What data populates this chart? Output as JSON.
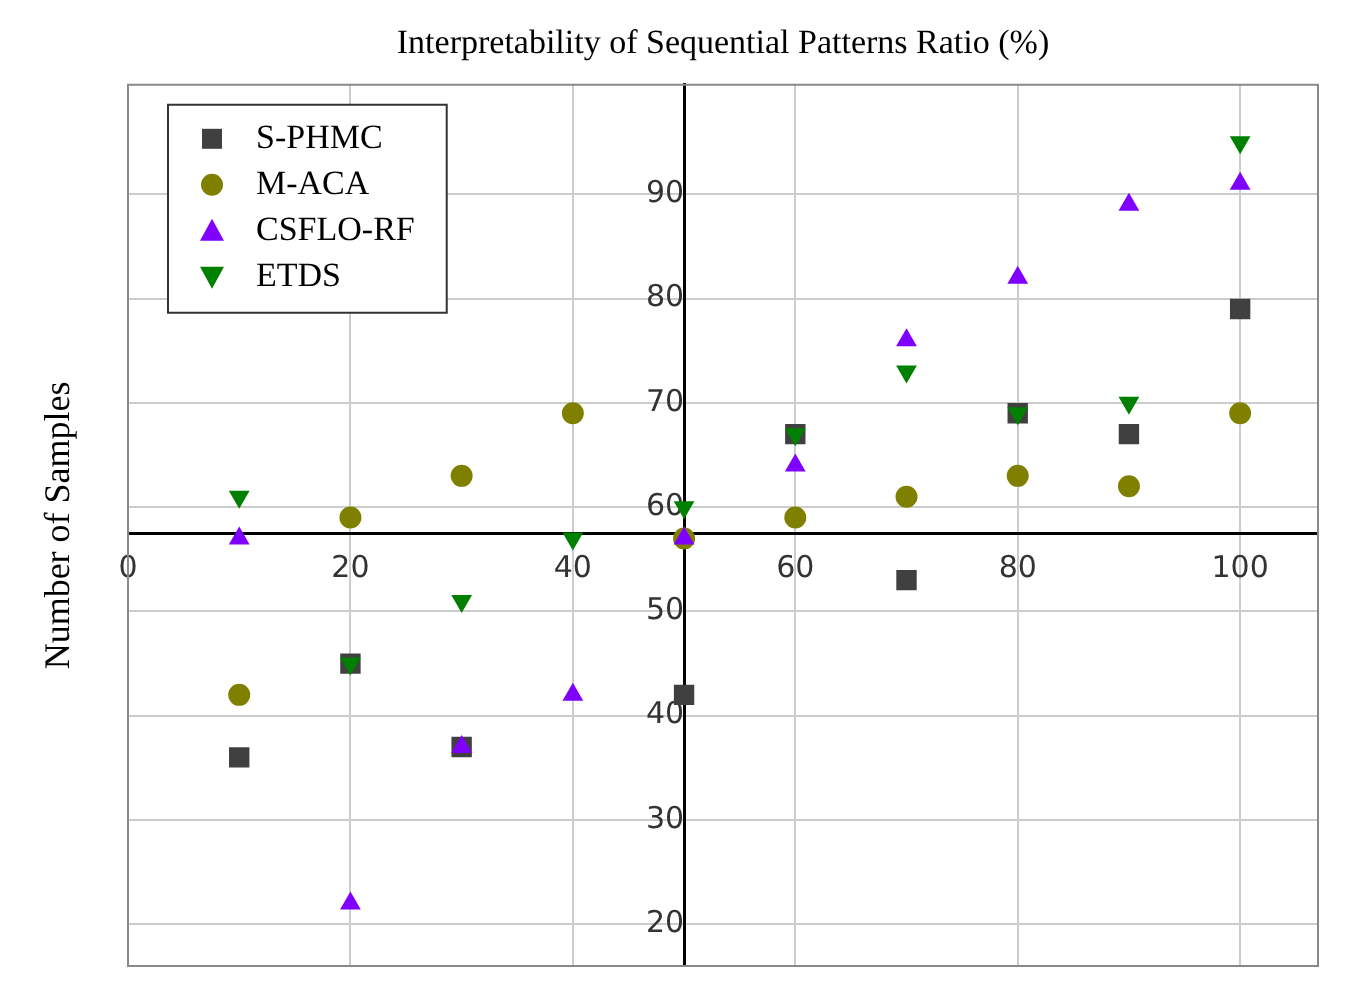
{
  "chart_data": {
    "type": "scatter",
    "xlabel": "Interpretability of Sequential Patterns Ratio (%)",
    "ylabel": "Number of Samples",
    "x": [
      10,
      20,
      30,
      40,
      50,
      60,
      70,
      80,
      90,
      100
    ],
    "series": [
      {
        "name": "S-PHMC",
        "color": "#404040",
        "marker": "square",
        "values": [
          36,
          45,
          37,
          null,
          42,
          67,
          53,
          69,
          67,
          79
        ]
      },
      {
        "name": "M-ACA",
        "color": "#808000",
        "marker": "circle",
        "values": [
          42,
          59,
          63,
          69,
          57,
          59,
          61,
          63,
          62,
          69
        ]
      },
      {
        "name": "CSFLO-RF",
        "color": "#8000ff",
        "marker": "triangle",
        "values": [
          57,
          22,
          37,
          42,
          57,
          64,
          76,
          82,
          89,
          91
        ]
      },
      {
        "name": "ETDS",
        "color": "#008000",
        "marker": "triangle-down",
        "values": [
          61,
          45,
          51,
          57,
          60,
          67,
          73,
          69,
          70,
          95
        ]
      }
    ],
    "xlim": [
      0,
      107
    ],
    "ylim": [
      16,
      100.5
    ],
    "xticks": [
      0,
      20,
      40,
      60,
      80,
      100
    ],
    "yticks": [
      20,
      30,
      40,
      50,
      60,
      70,
      80,
      90
    ],
    "grid": true,
    "legend": "top left"
  }
}
